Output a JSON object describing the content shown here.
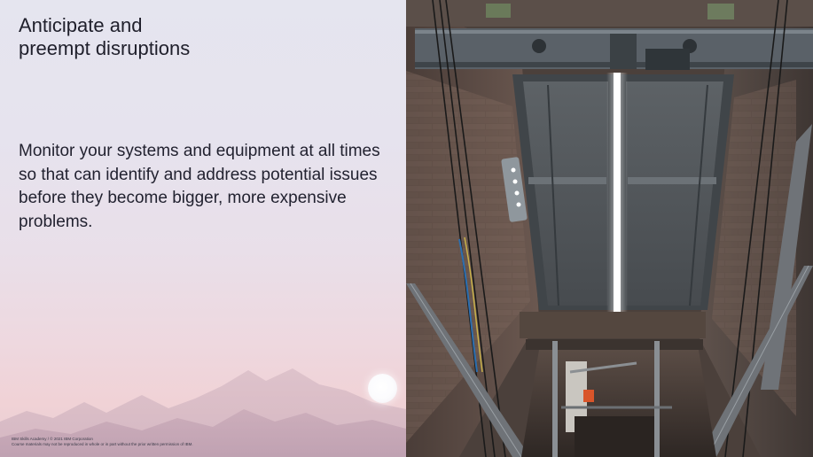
{
  "slide": {
    "title": "Anticipate and\npreempt disruptions",
    "body": "Monitor your systems and equipment at all times so that can identify and address potential issues before they become bigger, more expensive problems.",
    "footer_line1": "IBM Skills Academy / © 2021 IBM Corporation",
    "footer_line2": "Course materials may not be reproduced in whole or in part without the prior written permission of IBM."
  },
  "photo": {
    "subject": "elevator-shaft",
    "accent_light": "#ffffff",
    "cable_color": "#1a1a1a",
    "rail_color": "#6f7378"
  },
  "colors": {
    "text": "#1f1f2b",
    "gradient_top": "#e5e5ef",
    "gradient_bottom": "#e9cdd2"
  }
}
